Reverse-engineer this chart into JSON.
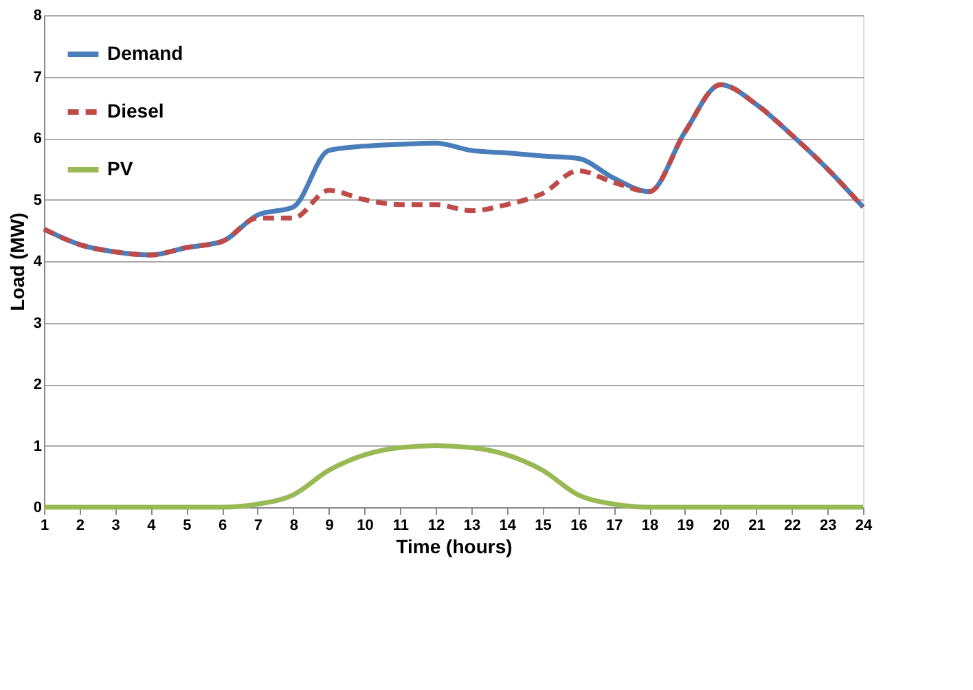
{
  "chart_data": {
    "type": "line",
    "xlabel": "Time (hours)",
    "ylabel": "Load  (MW)",
    "x": [
      1,
      2,
      3,
      4,
      5,
      6,
      7,
      8,
      9,
      10,
      11,
      12,
      13,
      14,
      15,
      16,
      17,
      18,
      19,
      20,
      21,
      22,
      23,
      24
    ],
    "series": [
      {
        "name": "Demand",
        "color": "#4a7ebb",
        "line_style": "solid",
        "values": [
          4.52,
          4.27,
          4.15,
          4.1,
          4.22,
          4.32,
          4.75,
          4.88,
          5.8,
          5.87,
          5.9,
          5.92,
          5.8,
          5.76,
          5.71,
          5.67,
          5.35,
          5.13,
          6.1,
          6.87,
          6.55,
          6.05,
          5.5,
          4.88
        ]
      },
      {
        "name": "Diesel",
        "color": "#be4b48",
        "line_style": "dashed",
        "values": [
          4.52,
          4.27,
          4.15,
          4.1,
          4.22,
          4.32,
          4.7,
          4.7,
          5.15,
          5.0,
          4.92,
          4.92,
          4.82,
          4.92,
          5.1,
          5.47,
          5.28,
          5.13,
          6.1,
          6.87,
          6.55,
          6.05,
          5.5,
          4.88
        ]
      },
      {
        "name": "PV",
        "color": "#98b954",
        "line_style": "solid",
        "values": [
          0,
          0,
          0,
          0,
          0,
          0,
          0.05,
          0.2,
          0.6,
          0.85,
          0.97,
          1.0,
          0.97,
          0.85,
          0.6,
          0.2,
          0.05,
          0,
          0,
          0,
          0,
          0,
          0,
          0
        ]
      }
    ],
    "xlim": [
      1,
      24
    ],
    "xticks": [
      1,
      2,
      3,
      4,
      5,
      6,
      7,
      8,
      9,
      10,
      11,
      12,
      13,
      14,
      15,
      16,
      17,
      18,
      19,
      20,
      21,
      22,
      23,
      24
    ],
    "ylim": [
      0,
      8
    ],
    "yticks": [
      0,
      1,
      2,
      3,
      4,
      5,
      6,
      7,
      8
    ],
    "grid": "y",
    "legend": "top left",
    "marker": "none"
  }
}
